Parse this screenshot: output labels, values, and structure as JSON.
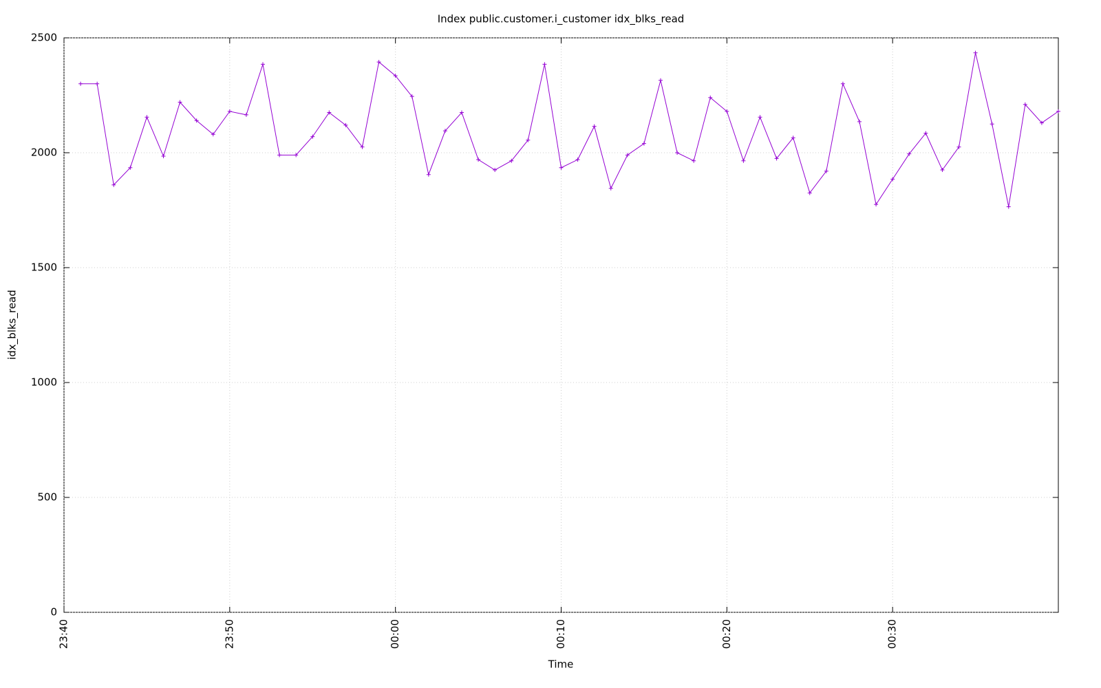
{
  "chart_data": {
    "type": "line",
    "title": "Index public.customer.i_customer idx_blks_read",
    "x_label": "Time",
    "y_label": "idx_blks_read",
    "x": [
      "23:41",
      "23:42",
      "23:43",
      "23:44",
      "23:45",
      "23:46",
      "23:47",
      "23:48",
      "23:49",
      "23:50",
      "23:51",
      "23:52",
      "23:53",
      "23:54",
      "23:55",
      "23:56",
      "23:57",
      "23:58",
      "23:59",
      "00:00",
      "00:01",
      "00:02",
      "00:03",
      "00:04",
      "00:05",
      "00:06",
      "00:07",
      "00:08",
      "00:09",
      "00:10",
      "00:11",
      "00:12",
      "00:13",
      "00:14",
      "00:15",
      "00:16",
      "00:17",
      "00:18",
      "00:19",
      "00:20",
      "00:21",
      "00:22",
      "00:23",
      "00:24",
      "00:25",
      "00:26",
      "00:27",
      "00:28",
      "00:29",
      "00:30",
      "00:31",
      "00:32",
      "00:33",
      "00:34",
      "00:35",
      "00:36",
      "00:37",
      "00:38",
      "00:39",
      "00:40"
    ],
    "series": [
      {
        "name": "idx_blks_read",
        "color": "#9400d3",
        "values": [
          2300,
          2300,
          1860,
          1935,
          2155,
          1985,
          2220,
          2140,
          2080,
          2180,
          2165,
          2385,
          1990,
          1990,
          2070,
          2175,
          2120,
          2025,
          2395,
          2335,
          2245,
          1905,
          2095,
          2175,
          1970,
          1925,
          1965,
          2055,
          2385,
          1935,
          1970,
          2115,
          1845,
          1990,
          2040,
          2315,
          2000,
          1965,
          2240,
          2180,
          1965,
          2155,
          1975,
          2065,
          1825,
          1920,
          2300,
          2135,
          1775,
          1885,
          1995,
          2085,
          1925,
          2025,
          2435,
          2125,
          1765,
          2210,
          2130,
          2180
        ]
      }
    ],
    "xlim": [
      "23:40",
      "00:40"
    ],
    "xticks": [
      "23:40",
      "23:50",
      "00:00",
      "00:10",
      "00:20",
      "00:30"
    ],
    "ylim": [
      0,
      2500
    ],
    "yticks": [
      0,
      500,
      1000,
      1500,
      2000,
      2500
    ],
    "grid": true
  }
}
